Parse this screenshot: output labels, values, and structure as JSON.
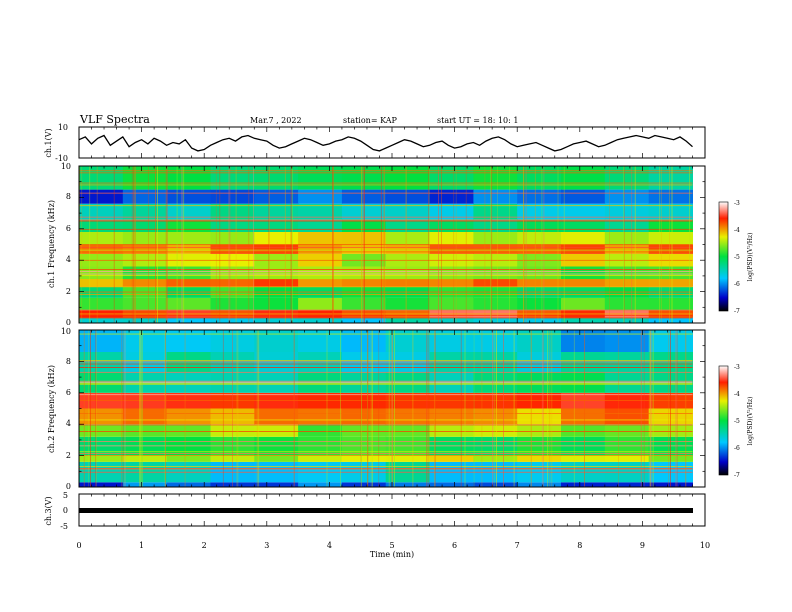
{
  "header": {
    "title": "VLF Spectra",
    "date": "Mar.7 , 2022",
    "station": "station= KAP",
    "start": "start  UT =   18: 10: 1"
  },
  "chart_data": [
    {
      "type": "line",
      "panel": "ch1-voltage",
      "ylabel": "ch.1(V)",
      "ylim": [
        -10,
        10
      ],
      "yticks": [
        "10",
        "-10"
      ],
      "xlim": [
        0,
        9.8
      ],
      "x_unit": "min",
      "x": [
        0,
        0.1,
        0.2,
        0.3,
        0.4,
        0.5,
        0.6,
        0.7,
        0.8,
        0.9,
        1.0,
        1.1,
        1.2,
        1.3,
        1.4,
        1.5,
        1.6,
        1.7,
        1.8,
        1.9,
        2.0,
        2.1,
        2.2,
        2.3,
        2.4,
        2.5,
        2.6,
        2.7,
        2.8,
        2.9,
        3.0,
        3.1,
        3.2,
        3.3,
        3.4,
        3.5,
        3.6,
        3.7,
        3.8,
        3.9,
        4.0,
        4.1,
        4.2,
        4.3,
        4.4,
        4.5,
        4.6,
        4.7,
        4.8,
        4.9,
        5.0,
        5.1,
        5.2,
        5.3,
        5.4,
        5.5,
        5.6,
        5.7,
        5.8,
        5.9,
        6.0,
        6.1,
        6.2,
        6.3,
        6.4,
        6.5,
        6.6,
        6.7,
        6.8,
        6.9,
        7.0,
        7.1,
        7.2,
        7.3,
        7.4,
        7.5,
        7.6,
        7.7,
        7.8,
        7.9,
        8.0,
        8.1,
        8.2,
        8.3,
        8.4,
        8.5,
        8.6,
        8.7,
        8.8,
        8.9,
        9.0,
        9.1,
        9.2,
        9.3,
        9.4,
        9.5,
        9.6,
        9.7,
        9.8
      ],
      "y": [
        2,
        4,
        -1,
        3,
        5,
        -2,
        1,
        4,
        -3,
        0,
        2,
        -1,
        3,
        1,
        -2,
        0,
        -1,
        2,
        -4,
        -6,
        -5,
        -2,
        0,
        2,
        3,
        1,
        4,
        5,
        3,
        2,
        1,
        -2,
        -4,
        -3,
        -1,
        1,
        3,
        2,
        0,
        -2,
        -1,
        1,
        2,
        4,
        3,
        1,
        -2,
        -5,
        -6,
        -4,
        -2,
        0,
        2,
        1,
        -1,
        -3,
        -2,
        0,
        1,
        -2,
        -4,
        -3,
        -1,
        0,
        -2,
        1,
        3,
        4,
        2,
        -1,
        -3,
        -2,
        -1,
        0,
        -2,
        -4,
        -6,
        -5,
        -3,
        -1,
        0,
        1,
        -1,
        -3,
        -2,
        0,
        2,
        3,
        4,
        5,
        4,
        3,
        5,
        4,
        3,
        2,
        4,
        1,
        -3
      ]
    },
    {
      "type": "heatmap",
      "panel": "ch1-spectrogram",
      "ylabel": "ch.1 Frequency (kHz)",
      "ylim": [
        0,
        10
      ],
      "yticks": [
        "0",
        "2",
        "4",
        "6",
        "8",
        "10"
      ],
      "xlim": [
        0,
        9.8
      ],
      "colorbar": {
        "label": "log(PSD)(V²/Hz)",
        "range": [
          -7,
          -3
        ],
        "ticks": [
          "-3",
          "-4",
          "-5",
          "-6",
          "-7"
        ]
      },
      "freq_bands_kHz": [
        {
          "range": [
            0,
            0.35
          ],
          "level": -5.6
        },
        {
          "range": [
            0.35,
            0.8
          ],
          "level": -3.6
        },
        {
          "range": [
            0.8,
            1.6
          ],
          "level": -4.8
        },
        {
          "range": [
            1.6,
            2.3
          ],
          "level": -5.0
        },
        {
          "range": [
            2.3,
            2.8
          ],
          "level": -3.9
        },
        {
          "range": [
            2.8,
            3.6
          ],
          "level": -4.7
        },
        {
          "range": [
            3.6,
            4.4
          ],
          "level": -4.4
        },
        {
          "range": [
            4.4,
            5.0
          ],
          "level": -3.9
        },
        {
          "range": [
            5.0,
            5.8
          ],
          "level": -4.3
        },
        {
          "range": [
            5.8,
            6.6
          ],
          "level": -5.1
        },
        {
          "range": [
            6.6,
            7.6
          ],
          "level": -5.5
        },
        {
          "range": [
            7.6,
            8.5
          ],
          "level": -6.2
        },
        {
          "range": [
            8.5,
            10
          ],
          "level": -5.2
        }
      ]
    },
    {
      "type": "heatmap",
      "panel": "ch2-spectrogram",
      "ylabel": "ch.2 Frequency (kHz)",
      "ylim": [
        0,
        10
      ],
      "yticks": [
        "0",
        "2",
        "4",
        "6",
        "8",
        "10"
      ],
      "xlim": [
        0,
        9.8
      ],
      "colorbar": {
        "label": "log(PSD)(V²/Hz)",
        "range": [
          -7,
          -3
        ],
        "ticks": [
          "-3",
          "-4",
          "-5",
          "-6",
          "-7"
        ]
      },
      "freq_bands_kHz": [
        {
          "range": [
            0,
            0.3
          ],
          "level": -6.2
        },
        {
          "range": [
            0.3,
            1.6
          ],
          "level": -5.6
        },
        {
          "range": [
            1.6,
            2.0
          ],
          "level": -4.4
        },
        {
          "range": [
            2.0,
            3.2
          ],
          "level": -5.0
        },
        {
          "range": [
            3.2,
            4.0
          ],
          "level": -4.6
        },
        {
          "range": [
            4.0,
            5.0
          ],
          "level": -4.0
        },
        {
          "range": [
            5.0,
            6.0
          ],
          "level": -3.5
        },
        {
          "range": [
            6.0,
            7.3
          ],
          "level": -5.3
        },
        {
          "range": [
            7.3,
            8.6
          ],
          "level": -5.5
        },
        {
          "range": [
            8.6,
            10
          ],
          "level": -5.8
        }
      ]
    },
    {
      "type": "line",
      "panel": "ch3-voltage",
      "ylabel": "ch.3(V)",
      "ylim": [
        -5,
        5
      ],
      "yticks": [
        "5",
        "0",
        "-5"
      ],
      "xlim": [
        0,
        9.8
      ],
      "x": [
        0,
        9.8
      ],
      "y": [
        -1,
        -1
      ]
    }
  ],
  "x_axis": {
    "label": "Time  (min)",
    "range": [
      0,
      10
    ],
    "ticks": [
      "0",
      "1",
      "2",
      "3",
      "4",
      "5",
      "6",
      "7",
      "8",
      "9",
      "10"
    ]
  }
}
